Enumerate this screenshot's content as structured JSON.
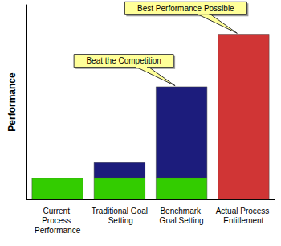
{
  "chart_data": {
    "type": "bar",
    "stacked": true,
    "ylabel": "Performance",
    "categories": [
      "Current Process Performance",
      "Traditional Goal Setting",
      "Benchmark Goal Setting",
      "Actual Process Entitlement"
    ],
    "series": [
      {
        "color": "#33cc00",
        "values": [
          11,
          11,
          11,
          null
        ]
      },
      {
        "color": "#1c1c7c",
        "values": [
          null,
          8,
          47,
          null
        ]
      },
      {
        "color": "#d03535",
        "values": [
          null,
          null,
          null,
          85
        ]
      }
    ],
    "ylim": [
      0,
      100
    ],
    "tick_labels": "x",
    "grid": false,
    "annotations": [
      {
        "text": "Beat the Competition",
        "category": "Benchmark Goal Setting"
      },
      {
        "text": "Best Performance Possible",
        "category": "Actual Process Entitlement"
      }
    ]
  }
}
